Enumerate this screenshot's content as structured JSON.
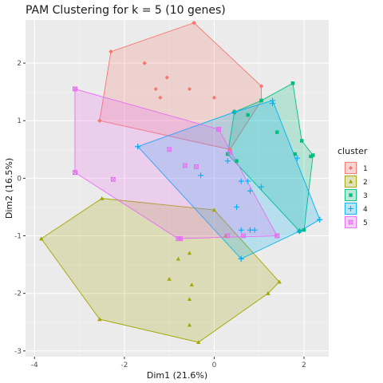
{
  "chart_data": {
    "type": "scatter",
    "title": "PAM Clustering for k = 5 (10 genes)",
    "xlabel": "Dim1 (21.6%)",
    "ylabel": "Dim2 (16.5%)",
    "xlim": [
      -4.2,
      2.55
    ],
    "ylim": [
      -3.1,
      2.75
    ],
    "x_ticks": [
      -4,
      -2,
      0,
      2
    ],
    "y_ticks": [
      -3,
      -2,
      -1,
      0,
      1,
      2
    ],
    "grid": true,
    "legend": {
      "title": "cluster",
      "position": "right"
    },
    "series": [
      {
        "name": "1",
        "color": "#F8766D",
        "marker": "diamond",
        "points": [
          [
            -2.3,
            2.2
          ],
          [
            -1.55,
            2.0
          ],
          [
            -1.05,
            1.75
          ],
          [
            -1.3,
            1.55
          ],
          [
            -0.55,
            1.55
          ],
          [
            -1.2,
            1.4
          ],
          [
            0,
            1.4
          ],
          [
            0.35,
            0.5
          ],
          [
            -2.55,
            1.0
          ],
          [
            1.05,
            1.6
          ],
          [
            -0.45,
            2.7
          ]
        ],
        "hull": [
          [
            -0.45,
            2.7
          ],
          [
            1.05,
            1.6
          ],
          [
            1.05,
            1.35
          ],
          [
            0.35,
            0.5
          ],
          [
            -2.55,
            1.0
          ],
          [
            -2.3,
            2.2
          ]
        ]
      },
      {
        "name": "2",
        "color": "#A3A500",
        "marker": "triangle",
        "points": [
          [
            -2.5,
            -0.35
          ],
          [
            -3.85,
            -1.05
          ],
          [
            -2.55,
            -2.45
          ],
          [
            -0.35,
            -2.85
          ],
          [
            1.2,
            -2.0
          ],
          [
            1.45,
            -1.8
          ],
          [
            -1.0,
            -1.75
          ],
          [
            -0.55,
            -1.3
          ],
          [
            -0.8,
            -1.4
          ],
          [
            -0.5,
            -1.85
          ],
          [
            -0.55,
            -2.1
          ],
          [
            -0.55,
            -2.55
          ],
          [
            0,
            -0.55
          ],
          [
            0.25,
            -1.0
          ]
        ],
        "hull": [
          [
            -2.5,
            -0.35
          ],
          [
            0,
            -0.55
          ],
          [
            1.45,
            -1.8
          ],
          [
            1.2,
            -2.0
          ],
          [
            -0.35,
            -2.85
          ],
          [
            -2.55,
            -2.45
          ],
          [
            -3.85,
            -1.05
          ]
        ]
      },
      {
        "name": "3",
        "color": "#00BF7D",
        "marker": "square",
        "points": [
          [
            1.75,
            1.65
          ],
          [
            1.05,
            1.35
          ],
          [
            0.45,
            1.15
          ],
          [
            0.75,
            1.1
          ],
          [
            1.4,
            0.8
          ],
          [
            1.95,
            0.65
          ],
          [
            0.3,
            0.42
          ],
          [
            1.8,
            0.42
          ],
          [
            2.15,
            0.38
          ],
          [
            0.5,
            0.3
          ],
          [
            1.9,
            -0.92
          ]
        ],
        "hull": [
          [
            1.05,
            1.35
          ],
          [
            1.75,
            1.65
          ],
          [
            1.95,
            0.65
          ],
          [
            2.2,
            0.4
          ],
          [
            2.0,
            -0.9
          ],
          [
            1.9,
            -0.92
          ],
          [
            0.3,
            0.42
          ],
          [
            0.45,
            1.15
          ]
        ]
      },
      {
        "name": "4",
        "color": "#00B0F6",
        "marker": "plus",
        "points": [
          [
            -1.7,
            0.55
          ],
          [
            1.3,
            1.3
          ],
          [
            1.85,
            0.35
          ],
          [
            2.35,
            -0.72
          ],
          [
            1.9,
            -0.92
          ],
          [
            0.6,
            -1.4
          ],
          [
            0.6,
            -0.9
          ],
          [
            0.8,
            -0.9
          ],
          [
            0.9,
            -0.9
          ],
          [
            0.8,
            -0.22
          ],
          [
            1.05,
            -0.15
          ],
          [
            0.75,
            -0.05
          ],
          [
            0.6,
            -0.05
          ],
          [
            0.5,
            -0.5
          ],
          [
            -0.3,
            0.05
          ],
          [
            0.3,
            0.3
          ]
        ],
        "hull": [
          [
            -1.7,
            0.55
          ],
          [
            0.45,
            1.15
          ],
          [
            1.3,
            1.35
          ],
          [
            2.35,
            -0.72
          ],
          [
            1.9,
            -0.92
          ],
          [
            0.6,
            -1.4
          ]
        ]
      },
      {
        "name": "5",
        "color": "#E76BF3",
        "marker": "boxcross",
        "points": [
          [
            -3.1,
            1.55
          ],
          [
            -3.1,
            0.1
          ],
          [
            -2.25,
            -0.02
          ],
          [
            -1.0,
            0.5
          ],
          [
            -0.75,
            -1.05
          ],
          [
            -0.65,
            0.22
          ],
          [
            -0.4,
            0.2
          ],
          [
            0.1,
            0.85
          ],
          [
            0.3,
            -1.0
          ],
          [
            0.65,
            -1.0
          ],
          [
            1.4,
            -1.0
          ],
          [
            0.35,
            0.45
          ]
        ],
        "hull": [
          [
            -3.1,
            1.55
          ],
          [
            0.1,
            0.85
          ],
          [
            1.4,
            -1.0
          ],
          [
            -0.8,
            -1.05
          ],
          [
            -3.1,
            0.1
          ]
        ]
      }
    ]
  }
}
